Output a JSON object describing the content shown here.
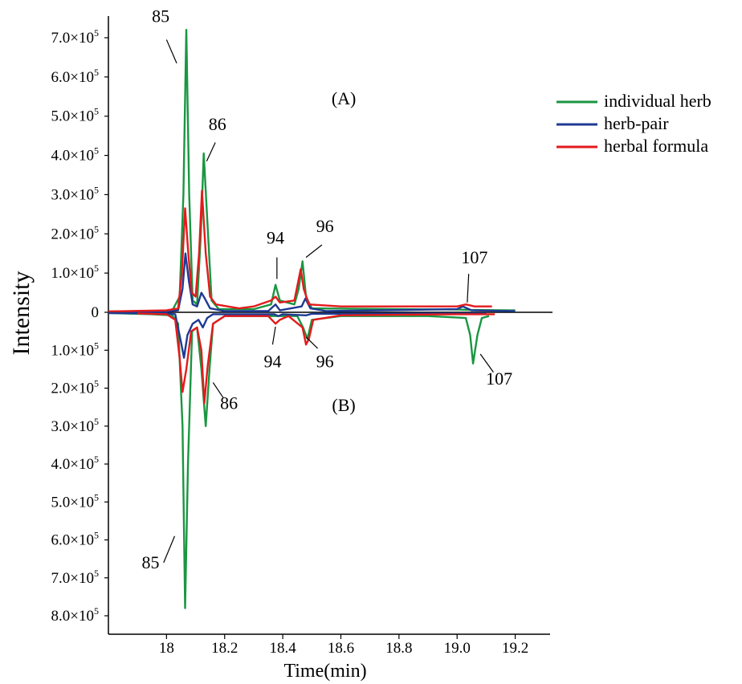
{
  "chart_data": {
    "type": "line",
    "xlabel": "Time(min)",
    "ylabel": "Intensity",
    "xlim": [
      17.8,
      19.32
    ],
    "ylim": [
      -830000,
      760000
    ],
    "x_ticks": [
      18,
      18.2,
      18.4,
      18.6,
      18.8,
      19.0,
      19.2
    ],
    "x_tick_labels": [
      "18",
      "18.2",
      "18.4",
      "18.6",
      "18.8",
      "19.0",
      "19.2"
    ],
    "y_ticks": [
      700000,
      600000,
      500000,
      400000,
      300000,
      200000,
      100000,
      0,
      -100000,
      -200000,
      -300000,
      -400000,
      -500000,
      -600000,
      -700000,
      -800000
    ],
    "y_tick_labels": [
      {
        "base": "7.0×10",
        "exp": "5"
      },
      {
        "base": "6.0×10",
        "exp": "5"
      },
      {
        "base": "5.0×10",
        "exp": "5"
      },
      {
        "base": "4.0×10",
        "exp": "5"
      },
      {
        "base": "3.0×10",
        "exp": "5"
      },
      {
        "base": "2.0×10",
        "exp": "5"
      },
      {
        "base": "1.0×10",
        "exp": "5"
      },
      {
        "base": "0",
        "exp": ""
      },
      {
        "base": "1.0×10",
        "exp": "5"
      },
      {
        "base": "2.0×10",
        "exp": "5"
      },
      {
        "base": "3.0×10",
        "exp": "5"
      },
      {
        "base": "4.0×10",
        "exp": "5"
      },
      {
        "base": "5.0×10",
        "exp": "5"
      },
      {
        "base": "6.0×10",
        "exp": "5"
      },
      {
        "base": "7.0×10",
        "exp": "5"
      },
      {
        "base": "8.0×10",
        "exp": "5"
      }
    ],
    "panel_labels": [
      {
        "text": "(A)",
        "x": 18.61,
        "y": 530000
      },
      {
        "text": "(B)",
        "x": 18.61,
        "y": -260000
      }
    ],
    "legend": {
      "placement": "top-right outside",
      "entries": [
        {
          "name": "individual herb",
          "color": "#1a9641"
        },
        {
          "name": "herb-pair",
          "color": "#1f3a93"
        },
        {
          "name": "herbal formula",
          "color": "#e41a1c"
        }
      ]
    },
    "series": [
      {
        "name": "individual herb",
        "color": "#1a9641",
        "panel": "A",
        "points": [
          [
            17.8,
            2000
          ],
          [
            17.95,
            3000
          ],
          [
            18.02,
            5000
          ],
          [
            18.045,
            40000
          ],
          [
            18.058,
            300000
          ],
          [
            18.068,
            720000
          ],
          [
            18.078,
            300000
          ],
          [
            18.09,
            30000
          ],
          [
            18.105,
            20000
          ],
          [
            18.118,
            200000
          ],
          [
            18.128,
            405000
          ],
          [
            18.14,
            240000
          ],
          [
            18.155,
            30000
          ],
          [
            18.18,
            8000
          ],
          [
            18.3,
            8000
          ],
          [
            18.36,
            20000
          ],
          [
            18.375,
            70000
          ],
          [
            18.39,
            30000
          ],
          [
            18.44,
            20000
          ],
          [
            18.455,
            60000
          ],
          [
            18.468,
            130000
          ],
          [
            18.48,
            40000
          ],
          [
            18.5,
            10000
          ],
          [
            18.8,
            8000
          ],
          [
            19.0,
            7000
          ],
          [
            19.05,
            6000
          ],
          [
            19.2,
            5000
          ]
        ]
      },
      {
        "name": "herb-pair",
        "color": "#1f3a93",
        "panel": "A",
        "points": [
          [
            17.8,
            1000
          ],
          [
            18.0,
            2000
          ],
          [
            18.04,
            5000
          ],
          [
            18.055,
            60000
          ],
          [
            18.065,
            150000
          ],
          [
            18.077,
            80000
          ],
          [
            18.09,
            20000
          ],
          [
            18.105,
            15000
          ],
          [
            18.12,
            50000
          ],
          [
            18.132,
            35000
          ],
          [
            18.15,
            10000
          ],
          [
            18.2,
            3000
          ],
          [
            18.35,
            3000
          ],
          [
            18.375,
            20000
          ],
          [
            18.39,
            5000
          ],
          [
            18.465,
            15000
          ],
          [
            18.478,
            35000
          ],
          [
            18.495,
            10000
          ],
          [
            18.55,
            3000
          ],
          [
            19.0,
            8000
          ],
          [
            19.02,
            15000
          ],
          [
            19.05,
            5000
          ],
          [
            19.2,
            3000
          ]
        ]
      },
      {
        "name": "herbal formula",
        "color": "#e41a1c",
        "panel": "A",
        "points": [
          [
            17.8,
            2000
          ],
          [
            18.0,
            5000
          ],
          [
            18.04,
            10000
          ],
          [
            18.053,
            100000
          ],
          [
            18.064,
            265000
          ],
          [
            18.075,
            150000
          ],
          [
            18.087,
            50000
          ],
          [
            18.1,
            40000
          ],
          [
            18.112,
            150000
          ],
          [
            18.122,
            310000
          ],
          [
            18.135,
            150000
          ],
          [
            18.15,
            40000
          ],
          [
            18.17,
            20000
          ],
          [
            18.25,
            10000
          ],
          [
            18.3,
            15000
          ],
          [
            18.36,
            30000
          ],
          [
            18.375,
            40000
          ],
          [
            18.39,
            25000
          ],
          [
            18.44,
            30000
          ],
          [
            18.462,
            110000
          ],
          [
            18.472,
            60000
          ],
          [
            18.49,
            20000
          ],
          [
            18.6,
            15000
          ],
          [
            18.8,
            15000
          ],
          [
            19.0,
            15000
          ],
          [
            19.03,
            20000
          ],
          [
            19.06,
            15000
          ],
          [
            19.12,
            15000
          ]
        ]
      },
      {
        "name": "individual herb",
        "color": "#1a9641",
        "panel": "B",
        "points": [
          [
            17.8,
            -2000
          ],
          [
            17.95,
            -5000
          ],
          [
            18.02,
            -8000
          ],
          [
            18.04,
            -30000
          ],
          [
            18.055,
            -300000
          ],
          [
            18.064,
            -780000
          ],
          [
            18.074,
            -400000
          ],
          [
            18.088,
            -50000
          ],
          [
            18.105,
            -40000
          ],
          [
            18.12,
            -150000
          ],
          [
            18.135,
            -300000
          ],
          [
            18.148,
            -150000
          ],
          [
            18.16,
            -30000
          ],
          [
            18.2,
            -10000
          ],
          [
            18.45,
            -10000
          ],
          [
            18.47,
            -40000
          ],
          [
            18.485,
            -70000
          ],
          [
            18.5,
            -20000
          ],
          [
            18.6,
            -10000
          ],
          [
            18.9,
            -10000
          ],
          [
            19.03,
            -15000
          ],
          [
            19.045,
            -60000
          ],
          [
            19.055,
            -135000
          ],
          [
            19.07,
            -60000
          ],
          [
            19.085,
            -15000
          ],
          [
            19.11,
            -10000
          ]
        ]
      },
      {
        "name": "herb-pair",
        "color": "#1f3a93",
        "panel": "B",
        "points": [
          [
            17.8,
            -2000
          ],
          [
            18.0,
            -3000
          ],
          [
            18.03,
            -5000
          ],
          [
            18.05,
            -80000
          ],
          [
            18.06,
            -120000
          ],
          [
            18.072,
            -60000
          ],
          [
            18.09,
            -30000
          ],
          [
            18.11,
            -20000
          ],
          [
            18.125,
            -40000
          ],
          [
            18.14,
            -15000
          ],
          [
            18.16,
            -5000
          ],
          [
            18.37,
            -5000
          ],
          [
            18.385,
            -10000
          ],
          [
            18.4,
            -5000
          ],
          [
            18.48,
            -8000
          ],
          [
            18.5,
            -4000
          ],
          [
            19.0,
            -3000
          ],
          [
            19.1,
            -3000
          ]
        ]
      },
      {
        "name": "herbal formula",
        "color": "#e41a1c",
        "panel": "B",
        "points": [
          [
            17.9,
            -3000
          ],
          [
            18.0,
            -5000
          ],
          [
            18.03,
            -20000
          ],
          [
            18.045,
            -120000
          ],
          [
            18.055,
            -210000
          ],
          [
            18.068,
            -150000
          ],
          [
            18.085,
            -50000
          ],
          [
            18.105,
            -40000
          ],
          [
            18.12,
            -100000
          ],
          [
            18.13,
            -240000
          ],
          [
            18.142,
            -140000
          ],
          [
            18.16,
            -30000
          ],
          [
            18.2,
            -10000
          ],
          [
            18.35,
            -10000
          ],
          [
            18.375,
            -30000
          ],
          [
            18.39,
            -20000
          ],
          [
            18.42,
            -10000
          ],
          [
            18.468,
            -40000
          ],
          [
            18.48,
            -85000
          ],
          [
            18.49,
            -70000
          ],
          [
            18.505,
            -20000
          ],
          [
            18.6,
            -8000
          ],
          [
            19.0,
            -5000
          ],
          [
            19.13,
            -5000
          ]
        ]
      }
    ],
    "annotations": [
      {
        "text": "85",
        "panel": "A",
        "label_x": 17.98,
        "label_y": 740000,
        "line_from": [
          18.0,
          695000
        ],
        "line_to": [
          18.035,
          635000
        ]
      },
      {
        "text": "86",
        "panel": "A",
        "label_x": 18.175,
        "label_y": 465000,
        "line_from": [
          18.168,
          433000
        ],
        "line_to": [
          18.138,
          385000
        ]
      },
      {
        "text": "94",
        "panel": "A",
        "label_x": 18.375,
        "label_y": 175000,
        "line_from": [
          18.38,
          140000
        ],
        "line_to": [
          18.38,
          85000
        ]
      },
      {
        "text": "96",
        "panel": "A",
        "label_x": 18.545,
        "label_y": 205000,
        "line_from": [
          18.535,
          172000
        ],
        "line_to": [
          18.48,
          140000
        ]
      },
      {
        "text": "107",
        "panel": "A",
        "label_x": 19.06,
        "label_y": 125000,
        "line_from": [
          19.04,
          98000
        ],
        "line_to": [
          19.035,
          25000
        ]
      },
      {
        "text": "94",
        "panel": "B",
        "label_x": 18.365,
        "label_y": -145000,
        "line_from": [
          18.365,
          -85000
        ],
        "line_to": [
          18.375,
          -38000
        ]
      },
      {
        "text": "96",
        "panel": "B",
        "label_x": 18.545,
        "label_y": -145000,
        "line_from": [
          18.52,
          -95000
        ],
        "line_to": [
          18.48,
          -65000
        ]
      },
      {
        "text": "107",
        "panel": "B",
        "label_x": 19.145,
        "label_y": -190000,
        "line_from": [
          19.125,
          -158000
        ],
        "line_to": [
          19.08,
          -110000
        ]
      },
      {
        "text": "86",
        "panel": "B",
        "label_x": 18.215,
        "label_y": -255000,
        "line_from": [
          18.195,
          -225000
        ],
        "line_to": [
          18.16,
          -185000
        ]
      },
      {
        "text": "85",
        "panel": "B",
        "label_x": 17.945,
        "label_y": -675000,
        "line_from": [
          17.99,
          -660000
        ],
        "line_to": [
          18.028,
          -590000
        ]
      }
    ]
  }
}
